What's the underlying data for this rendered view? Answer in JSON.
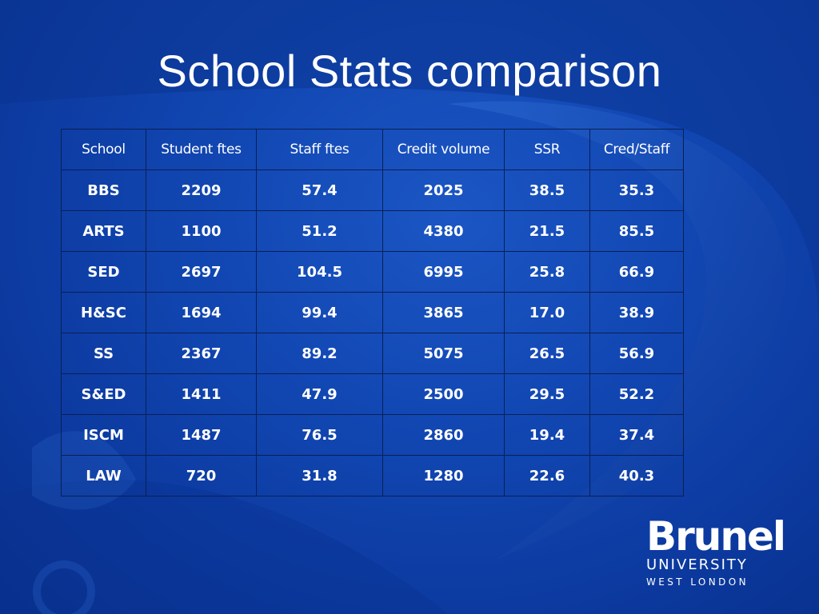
{
  "title": "School Stats comparison",
  "table": {
    "headers": [
      "School",
      "Student ftes",
      "Staff ftes",
      "Credit volume",
      "SSR",
      "Cred/Staff"
    ],
    "rows": [
      [
        "BBS",
        "2209",
        "57.4",
        "2025",
        "38.5",
        "35.3"
      ],
      [
        "ARTS",
        "1100",
        "51.2",
        "4380",
        "21.5",
        "85.5"
      ],
      [
        "SED",
        "2697",
        "104.5",
        "6995",
        "25.8",
        "66.9"
      ],
      [
        "H&SC",
        "1694",
        "99.4",
        "3865",
        "17.0",
        "38.9"
      ],
      [
        "SS",
        "2367",
        "89.2",
        "5075",
        "26.5",
        "56.9"
      ],
      [
        "S&ED",
        "1411",
        "47.9",
        "2500",
        "29.5",
        "52.2"
      ],
      [
        "ISCM",
        "1487",
        "76.5",
        "2860",
        "19.4",
        "37.4"
      ],
      [
        "LAW",
        "720",
        "31.8",
        "1280",
        "22.6",
        "40.3"
      ]
    ]
  },
  "logo": {
    "name": "Brunel",
    "line1": "UNIVERSITY",
    "line2": "WEST LONDON"
  },
  "colors": {
    "background": "#1248b4",
    "text": "#ffffff",
    "grid": "#0a1f55"
  }
}
